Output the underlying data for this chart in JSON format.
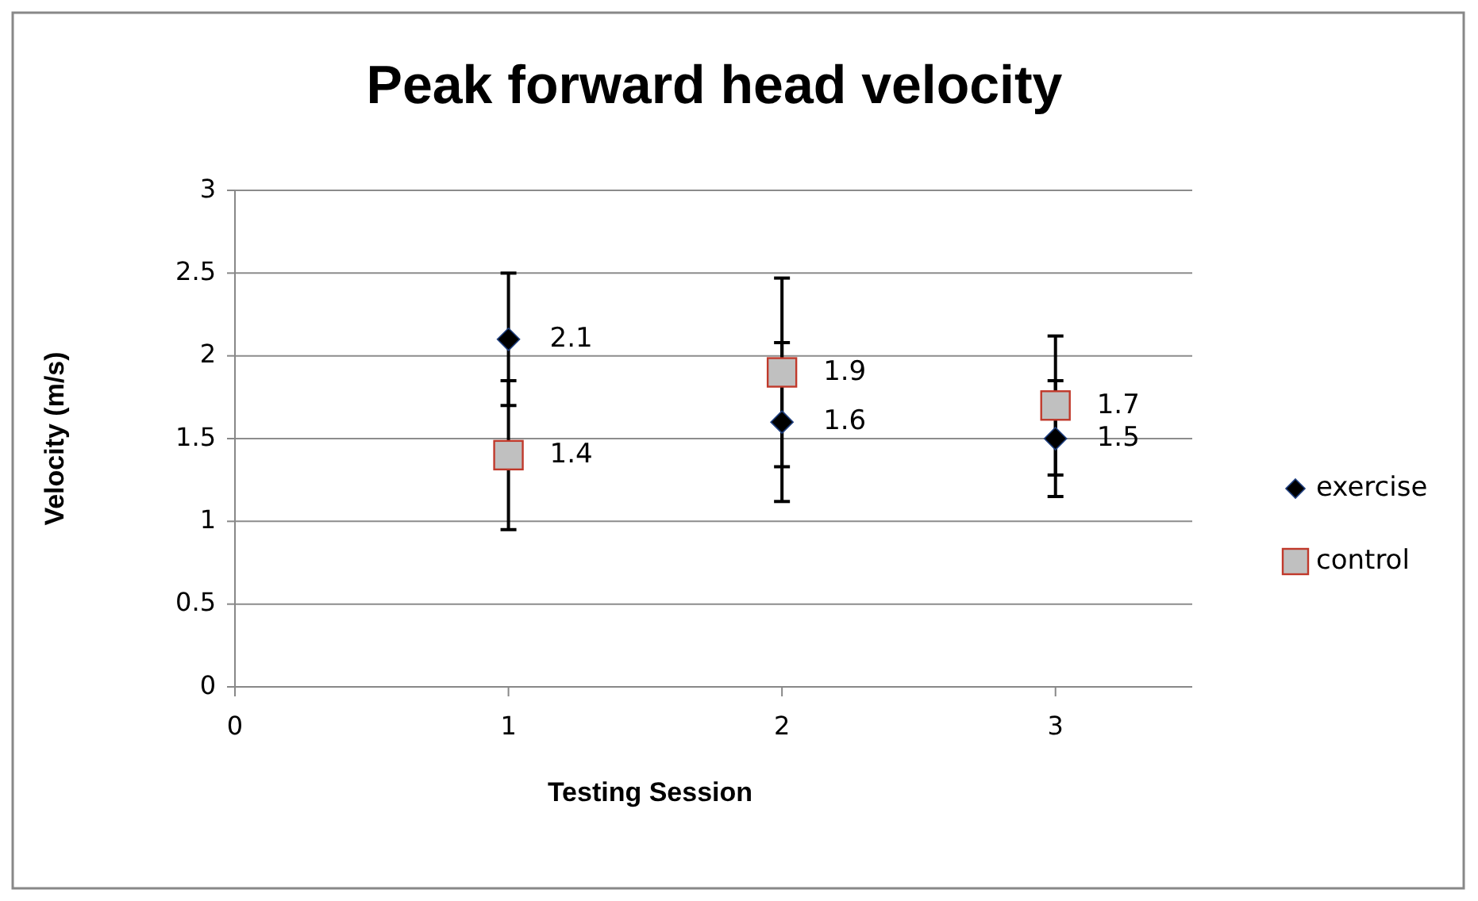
{
  "chart_data": {
    "type": "scatter",
    "title": "Peak forward head velocity",
    "xlabel": "Testing Session",
    "ylabel": "Velocity (m/s)",
    "xlim": [
      0,
      3.5
    ],
    "xticks": [
      0,
      1,
      2,
      3
    ],
    "ylim": [
      0,
      3
    ],
    "yticks": [
      0,
      0.5,
      1,
      1.5,
      2,
      2.5,
      3
    ],
    "grid": "y",
    "legend": "right",
    "data_labels": true,
    "series": [
      {
        "name": "exercise",
        "color": "#000000",
        "marker": "diamond",
        "x": [
          1,
          2,
          3
        ],
        "values": [
          2.1,
          1.6,
          1.5
        ],
        "errors": [
          0.4,
          0.48,
          0.35
        ]
      },
      {
        "name": "control",
        "color": "#c0c0c0",
        "marker": "square",
        "x": [
          1,
          2,
          3
        ],
        "values": [
          1.4,
          1.9,
          1.7
        ],
        "errors": [
          0.45,
          0.57,
          0.42
        ]
      }
    ]
  }
}
